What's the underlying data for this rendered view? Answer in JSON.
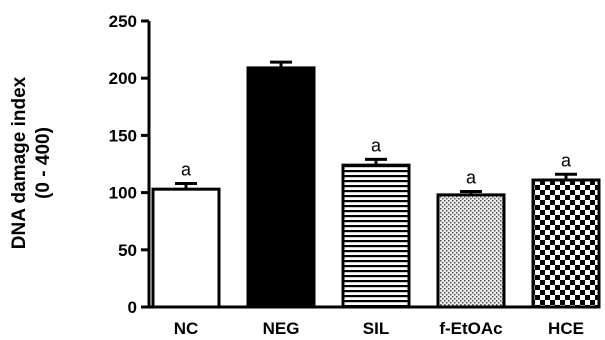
{
  "chart_data": {
    "type": "bar",
    "title": "",
    "xlabel": "",
    "ylabel": "DNA damage index",
    "ylabel_sub": "(0 - 400)",
    "ylim": [
      0,
      250
    ],
    "yticks": [
      0,
      50,
      100,
      150,
      200,
      250
    ],
    "grid": false,
    "legend": "none",
    "categories": [
      "NC",
      "NEG",
      "SIL",
      "f-EtOAc",
      "HCE"
    ],
    "values": [
      103,
      209,
      124,
      98,
      111
    ],
    "errors": [
      5,
      5,
      5,
      3,
      5
    ],
    "annotations": [
      "a",
      "",
      "a",
      "a",
      "a"
    ],
    "fills": [
      "white",
      "black",
      "horizontal-stripes",
      "dots",
      "checkerboard"
    ]
  },
  "colors": {
    "ink": "#000000",
    "background": "#ffffff"
  }
}
